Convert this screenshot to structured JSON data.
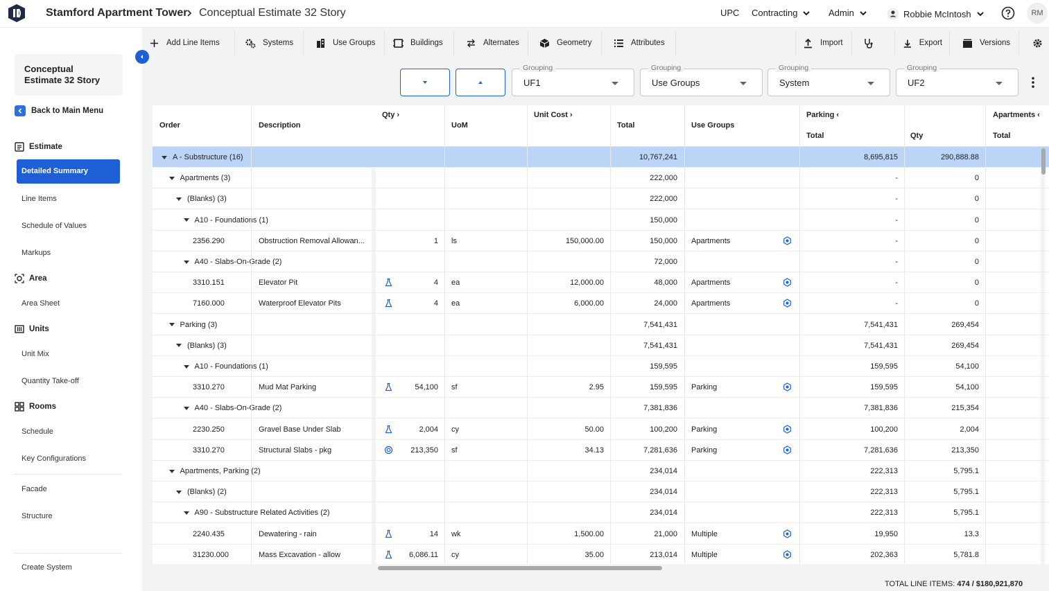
{
  "header": {
    "app_name": "Stamford Apartment Tower",
    "page_name": "Conceptual Estimate 32 Story",
    "nav": {
      "upc": "UPC",
      "contracting": "Contracting",
      "admin": "Admin",
      "user": "Robbie McIntosh",
      "avatar": "RM"
    }
  },
  "sidebar": {
    "title": "Conceptual Estimate 32 Story",
    "back": "Back to Main Menu",
    "estimate": "Estimate",
    "detailed_summary": "Detailed Summary",
    "line_items": "Line Items",
    "schedule_of_values": "Schedule of Values",
    "markups": "Markups",
    "area": "Area",
    "area_sheet": "Area Sheet",
    "units": "Units",
    "unit_mix": "Unit Mix",
    "quantity_takeoff": "Quantity Take-off",
    "rooms": "Rooms",
    "schedule": "Schedule",
    "key_configurations": "Key Configurations",
    "facade": "Facade",
    "structure": "Structure",
    "create_system": "Create System"
  },
  "toolbar": {
    "add_line_items": "Add Line Items",
    "systems": "Systems",
    "use_groups": "Use Groups",
    "buildings": "Buildings",
    "alternates": "Alternates",
    "geometry": "Geometry",
    "attributes": "Attributes",
    "import": "Import",
    "export": "Export",
    "versions": "Versions"
  },
  "groupings": [
    {
      "label": "Grouping",
      "value": "UF1"
    },
    {
      "label": "Grouping",
      "value": "Use Groups"
    },
    {
      "label": "Grouping",
      "value": "System"
    },
    {
      "label": "Grouping",
      "value": "UF2"
    }
  ],
  "table": {
    "headers": {
      "order": "Order",
      "description": "Description",
      "qty": "Qty",
      "uom": "UoM",
      "unit_cost": "Unit Cost",
      "total": "Total",
      "use_groups": "Use Groups",
      "parking": "Parking",
      "parking_total": "Total",
      "parking_qty": "Qty",
      "apartments": "Apartments",
      "apartments_total": "Total"
    },
    "rows": [
      {
        "order": "A - Substructure (16)",
        "desc": "",
        "qty": "",
        "uom": "",
        "unit_cost": "",
        "total": "10,767,241",
        "use_group": "",
        "p_total": "8,695,815",
        "p_qty": "290,888.88"
      },
      {
        "order": "Apartments (3)",
        "desc": "",
        "qty": "",
        "uom": "",
        "unit_cost": "",
        "total": "222,000",
        "use_group": "",
        "p_total": "-",
        "p_qty": "0"
      },
      {
        "order": "(Blanks) (3)",
        "desc": "",
        "qty": "",
        "uom": "",
        "unit_cost": "",
        "total": "222,000",
        "use_group": "",
        "p_total": "-",
        "p_qty": "0"
      },
      {
        "order": "A10 - Foundations (1)",
        "desc": "",
        "qty": "",
        "uom": "",
        "unit_cost": "",
        "total": "150,000",
        "use_group": "",
        "p_total": "-",
        "p_qty": "0"
      },
      {
        "order": "2356.290",
        "desc": "Obstruction Removal Allowan...",
        "qty": "1",
        "uom": "ls",
        "unit_cost": "150,000.00",
        "total": "150,000",
        "use_group": "Apartments",
        "p_total": "-",
        "p_qty": "0"
      },
      {
        "order": "A40 - Slabs-On-Grade (2)",
        "desc": "",
        "qty": "",
        "uom": "",
        "unit_cost": "",
        "total": "72,000",
        "use_group": "",
        "p_total": "-",
        "p_qty": "0"
      },
      {
        "order": "3310.151",
        "desc": "Elevator Pit",
        "qty": "4",
        "uom": "ea",
        "unit_cost": "12,000.00",
        "total": "48,000",
        "use_group": "Apartments",
        "p_total": "-",
        "p_qty": "0"
      },
      {
        "order": "7160.000",
        "desc": "Waterproof Elevator Pits",
        "qty": "4",
        "uom": "ea",
        "unit_cost": "6,000.00",
        "total": "24,000",
        "use_group": "Apartments",
        "p_total": "-",
        "p_qty": "0"
      },
      {
        "order": "Parking (3)",
        "desc": "",
        "qty": "",
        "uom": "",
        "unit_cost": "",
        "total": "7,541,431",
        "use_group": "",
        "p_total": "7,541,431",
        "p_qty": "269,454"
      },
      {
        "order": "(Blanks) (3)",
        "desc": "",
        "qty": "",
        "uom": "",
        "unit_cost": "",
        "total": "7,541,431",
        "use_group": "",
        "p_total": "7,541,431",
        "p_qty": "269,454"
      },
      {
        "order": "A10 - Foundations (1)",
        "desc": "",
        "qty": "",
        "uom": "",
        "unit_cost": "",
        "total": "159,595",
        "use_group": "",
        "p_total": "159,595",
        "p_qty": "54,100"
      },
      {
        "order": "3310.270",
        "desc": "Mud Mat Parking",
        "qty": "54,100",
        "uom": "sf",
        "unit_cost": "2.95",
        "total": "159,595",
        "use_group": "Parking",
        "p_total": "159,595",
        "p_qty": "54,100"
      },
      {
        "order": "A40 - Slabs-On-Grade (2)",
        "desc": "",
        "qty": "",
        "uom": "",
        "unit_cost": "",
        "total": "7,381,836",
        "use_group": "",
        "p_total": "7,381,836",
        "p_qty": "215,354"
      },
      {
        "order": "2230.250",
        "desc": "Gravel Base Under Slab",
        "qty": "2,004",
        "uom": "cy",
        "unit_cost": "50.00",
        "total": "100,200",
        "use_group": "Parking",
        "p_total": "100,200",
        "p_qty": "2,004"
      },
      {
        "order": "3310.270",
        "desc": "Structural Slabs - pkg",
        "qty": "213,350",
        "uom": "sf",
        "unit_cost": "34.13",
        "total": "7,281,636",
        "use_group": "Parking",
        "p_total": "7,281,636",
        "p_qty": "213,350"
      },
      {
        "order": "Apartments, Parking (2)",
        "desc": "",
        "qty": "",
        "uom": "",
        "unit_cost": "",
        "total": "234,014",
        "use_group": "",
        "p_total": "222,313",
        "p_qty": "5,795.1"
      },
      {
        "order": "(Blanks) (2)",
        "desc": "",
        "qty": "",
        "uom": "",
        "unit_cost": "",
        "total": "234,014",
        "use_group": "",
        "p_total": "222,313",
        "p_qty": "5,795.1"
      },
      {
        "order": "A90 - Substructure Related Activities (2)",
        "desc": "",
        "qty": "",
        "uom": "",
        "unit_cost": "",
        "total": "234,014",
        "use_group": "",
        "p_total": "222,313",
        "p_qty": "5,795.1"
      },
      {
        "order": "2240.435",
        "desc": "Dewatering - rain",
        "qty": "14",
        "uom": "wk",
        "unit_cost": "1,500.00",
        "total": "21,000",
        "use_group": "Multiple",
        "p_total": "19,950",
        "p_qty": "13.3"
      },
      {
        "order": "31230.000",
        "desc": "Mass Excavation - allow",
        "qty": "6,086.11",
        "uom": "cy",
        "unit_cost": "35.00",
        "total": "213,014",
        "use_group": "Multiple",
        "p_total": "202,363",
        "p_qty": "5,781.8"
      }
    ]
  },
  "footer": {
    "label": "TOTAL LINE ITEMS:",
    "value": "474 / $180,921,870"
  }
}
